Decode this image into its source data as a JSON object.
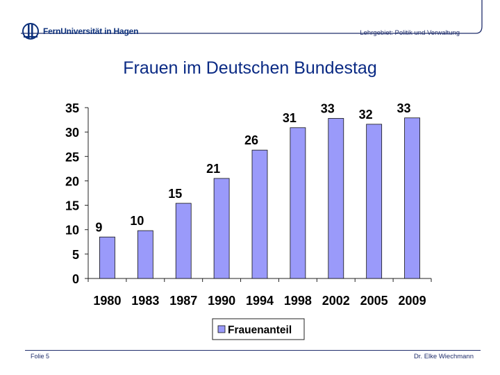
{
  "header": {
    "logo_text": "FernUniversität in Hagen",
    "subject": "Lehrgebiet: Politik und Verwaltung"
  },
  "slide_title": "Frauen im Deutschen Bundestag",
  "footer": {
    "slide_number": "Folie 5",
    "author": "Dr. Elke Wiechmann"
  },
  "colors": {
    "bar_fill": "#9a9afa",
    "bar_stroke": "#111111",
    "title": "#0a2a84",
    "rule": "#1f2d6b"
  },
  "chart_data": {
    "type": "bar",
    "title": "",
    "xlabel": "",
    "ylabel": "",
    "categories": [
      "1980",
      "1983",
      "1987",
      "1990",
      "1994",
      "1998",
      "2002",
      "2005",
      "2009"
    ],
    "series": [
      {
        "name": "Frauenanteil",
        "values": [
          8.5,
          9.8,
          15.4,
          20.5,
          26.3,
          30.9,
          32.8,
          31.6,
          32.9
        ],
        "labels": [
          "9",
          "10",
          "15",
          "21",
          "26",
          "31",
          "33",
          "32",
          "33"
        ]
      }
    ],
    "ylim": [
      0,
      35
    ],
    "yticks": [
      0,
      5,
      10,
      15,
      20,
      25,
      30,
      35
    ],
    "legend": "bottom-center",
    "grid": false
  }
}
